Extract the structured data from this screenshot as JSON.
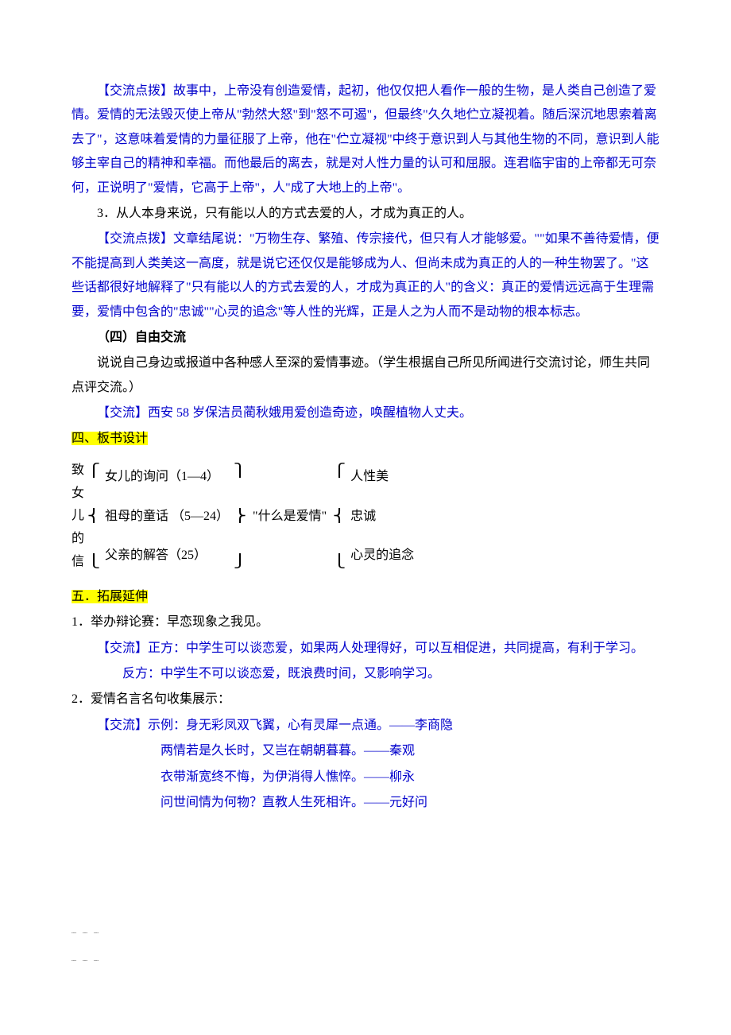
{
  "p1": {
    "tag": "【交流点拨】",
    "text": "故事中，上帝没有创造爱情，起初，他仅仅把人看作一般的生物，是人类自己创造了爱情。爱情的无法毁灭使上帝从\"勃然大怒\"到\"怒不可遏\"，但最终\"久久地伫立凝视着。随后深沉地思索着离去了\"，这意味着爱情的力量征服了上帝，他在\"伫立凝视\"中终于意识到人与其他生物的不同，意识到人能够主宰自己的精神和幸福。而他最后的离去，就是对人性力量的认可和屈服。连君临宇宙的上帝都无可奈何，正说明了\"爱情，它高于上帝\"，人\"成了大地上的上帝\"。"
  },
  "p2": "3．从人本身来说，只有能以人的方式去爱的人，才成为真正的人。",
  "p3": {
    "tag": "【交流点拨】",
    "text": "文章结尾说：\"万物生存、繁殖、传宗接代，但只有人才能够爱。\"\"如果不善待爱情，便不能提高到人类美这一高度，就是说它还仅仅是能够成为人、但尚未成为真正的人的一种生物罢了。\"这些话都很好地解释了\"只有能以人的方式去爱的人，才成为真正的人\"的含义：真正的爱情远远高于生理需要，爱情中包含的\"忠诚\"\"心灵的追念\"等人性的光辉，正是人之为人而不是动物的根本标志。"
  },
  "h4": "（四）自由交流",
  "p4": "说说自己身边或报道中各种感人至深的爱情事迹。（学生根据自己所见所闻进行交流讨论，师生共同点评交流。）",
  "ex1": {
    "tag": "【交流】",
    "text": "西安 58 岁保洁员蔺秋娥用爱创造奇迹，唤醒植物人丈夫。"
  },
  "h_board": "四、板书设计",
  "diagram": {
    "left": [
      "致",
      "女",
      "儿",
      "的",
      "信"
    ],
    "mid": [
      "女儿的询问（1—4）",
      "祖母的童话 （5—24）",
      "父亲的解答（25）"
    ],
    "center": "\"什么是爱情\"",
    "right": [
      "人性美",
      "忠诚",
      "心灵的追念"
    ]
  },
  "h_ext": "五．拓展延伸",
  "q1": "1．举办辩论赛：早恋现象之我见。",
  "a1": {
    "tag": "【交流】",
    "text": "正方：中学生可以谈恋爱，如果两人处理得好，可以互相促进，共同提高，有利于学习。"
  },
  "a1b": "反方：中学生不可以谈恋爱，既浪费时间，又影响学习。",
  "q2": "2．爱情名言名句收集展示：",
  "a2": {
    "tag": "【交流】",
    "text": "示例：身无彩凤双飞翼，心有灵犀一点通。——李商隐"
  },
  "quote2": "两情若是久长时，又岂在朝朝暮暮。——秦观",
  "quote3": "衣带渐宽终不悔，为伊消得人憔悴。——柳永",
  "quote4": "问世间情为何物？直教人生死相许。——元好问",
  "colors": {
    "blue": "#0000cc",
    "black": "#000000",
    "highlight": "#ffff00",
    "background": "#ffffff"
  }
}
